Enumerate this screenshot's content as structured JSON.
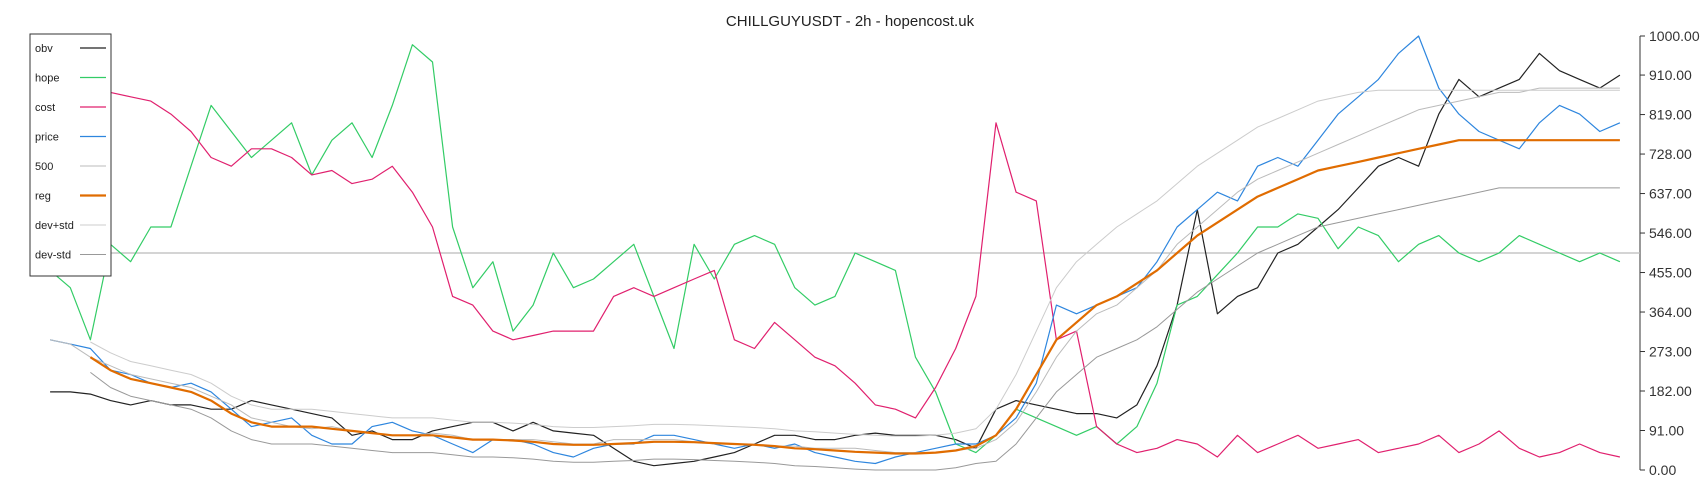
{
  "chart_data": {
    "type": "line",
    "title": "CHILLGUYUSDT - 2h - hopencost.uk",
    "xlabel": "",
    "ylabel": "",
    "ylim": [
      0,
      1000
    ],
    "yticks": [
      "1000.00",
      "910.00",
      "819.00",
      "728.00",
      "637.00",
      "546.00",
      "455.00",
      "364.00",
      "273.00",
      "182.00",
      "91.00",
      "0.00"
    ],
    "ytick_values": [
      1000,
      910,
      819,
      728,
      637,
      546,
      455,
      364,
      273,
      182,
      91,
      0
    ],
    "grid": false,
    "legend_position": "top-left",
    "reference_line": {
      "y": 500,
      "color": "#bbbbbb"
    },
    "x": [
      0,
      5,
      10,
      15,
      20,
      25,
      30,
      35,
      40,
      45,
      50,
      55,
      60,
      65,
      70,
      75,
      80,
      85,
      90,
      95,
      100,
      105,
      110,
      115,
      120,
      125,
      130,
      135,
      140,
      145,
      150,
      155,
      160,
      165,
      170,
      175,
      180,
      185,
      190,
      195,
      200,
      205,
      210,
      215,
      220,
      225,
      230,
      235,
      240,
      245,
      250,
      255,
      260,
      265,
      270,
      275,
      280,
      285,
      290,
      295,
      300,
      305,
      310,
      315,
      320,
      325,
      330,
      335,
      340,
      345,
      350,
      355,
      360,
      365,
      370,
      375,
      380,
      385,
      390,
      395,
      400
    ],
    "series": [
      {
        "name": "obv",
        "color": "#222222",
        "width": 1.2,
        "values": [
          null,
          180,
          180,
          175,
          160,
          150,
          160,
          150,
          150,
          140,
          140,
          160,
          150,
          140,
          130,
          120,
          80,
          90,
          70,
          70,
          90,
          100,
          110,
          110,
          90,
          110,
          90,
          85,
          80,
          50,
          20,
          10,
          15,
          20,
          30,
          40,
          60,
          80,
          80,
          70,
          70,
          80,
          85,
          80,
          80,
          80,
          70,
          50,
          140,
          160,
          150,
          140,
          130,
          130,
          120,
          150,
          240,
          380,
          600,
          360,
          400,
          420,
          500,
          520,
          560,
          600,
          650,
          700,
          720,
          700,
          820,
          900,
          860,
          880,
          900,
          960,
          920,
          900,
          880,
          910,
          null
        ]
      },
      {
        "name": "hope",
        "color": "#33cc66",
        "width": 1.2,
        "values": [
          null,
          460,
          420,
          300,
          520,
          480,
          560,
          560,
          700,
          840,
          780,
          720,
          760,
          800,
          680,
          760,
          800,
          720,
          840,
          980,
          940,
          560,
          420,
          480,
          320,
          380,
          500,
          420,
          440,
          480,
          520,
          400,
          280,
          520,
          440,
          520,
          540,
          520,
          420,
          380,
          400,
          500,
          480,
          460,
          260,
          180,
          60,
          40,
          80,
          140,
          120,
          100,
          80,
          100,
          60,
          100,
          200,
          380,
          400,
          450,
          500,
          560,
          560,
          590,
          580,
          510,
          560,
          540,
          480,
          520,
          540,
          500,
          480,
          500,
          540,
          520,
          500,
          480,
          500,
          480,
          null
        ]
      },
      {
        "name": "cost",
        "color": "#e0206e",
        "width": 1.2,
        "values": [
          null,
          820,
          840,
          870,
          870,
          860,
          850,
          820,
          780,
          720,
          700,
          740,
          740,
          720,
          680,
          690,
          660,
          670,
          700,
          640,
          560,
          400,
          380,
          320,
          300,
          310,
          320,
          320,
          320,
          400,
          420,
          400,
          420,
          440,
          460,
          300,
          280,
          340,
          300,
          260,
          240,
          200,
          150,
          140,
          120,
          190,
          280,
          400,
          800,
          640,
          620,
          300,
          320,
          100,
          60,
          40,
          50,
          70,
          60,
          30,
          80,
          40,
          60,
          80,
          50,
          60,
          70,
          40,
          50,
          60,
          80,
          40,
          60,
          90,
          50,
          30,
          40,
          60,
          40,
          30,
          null
        ]
      },
      {
        "name": "price",
        "color": "#2e86de",
        "width": 1.2,
        "values": [
          null,
          300,
          290,
          280,
          230,
          220,
          200,
          190,
          200,
          180,
          140,
          100,
          110,
          120,
          80,
          60,
          60,
          100,
          110,
          90,
          80,
          60,
          40,
          70,
          70,
          60,
          40,
          30,
          50,
          60,
          60,
          80,
          80,
          70,
          60,
          50,
          60,
          50,
          60,
          40,
          30,
          20,
          15,
          30,
          40,
          50,
          60,
          60,
          80,
          120,
          200,
          380,
          360,
          380,
          400,
          420,
          480,
          560,
          600,
          640,
          620,
          700,
          720,
          700,
          760,
          820,
          860,
          900,
          960,
          1000,
          880,
          820,
          780,
          760,
          740,
          800,
          840,
          820,
          780,
          800,
          null
        ]
      },
      {
        "name": "500",
        "color": "#bbbbbb",
        "width": 1.0,
        "values": [
          null,
          300,
          290,
          260,
          240,
          220,
          210,
          200,
          190,
          170,
          150,
          120,
          110,
          100,
          95,
          100,
          90,
          85,
          80,
          80,
          85,
          80,
          70,
          70,
          70,
          70,
          65,
          60,
          60,
          70,
          70,
          70,
          70,
          65,
          60,
          60,
          60,
          55,
          55,
          50,
          50,
          50,
          45,
          40,
          40,
          40,
          45,
          50,
          70,
          110,
          180,
          260,
          320,
          360,
          380,
          420,
          460,
          520,
          560,
          600,
          640,
          670,
          690,
          710,
          730,
          750,
          770,
          790,
          810,
          830,
          840,
          850,
          860,
          870,
          870,
          880,
          880,
          880,
          880,
          880,
          null
        ]
      },
      {
        "name": "reg",
        "color": "#e06c00",
        "width": 2.2,
        "values": [
          null,
          null,
          null,
          260,
          230,
          210,
          200,
          190,
          180,
          160,
          130,
          110,
          100,
          100,
          100,
          95,
          90,
          85,
          80,
          80,
          80,
          75,
          70,
          70,
          68,
          65,
          60,
          58,
          58,
          60,
          62,
          65,
          65,
          64,
          62,
          60,
          58,
          55,
          50,
          48,
          45,
          42,
          40,
          38,
          38,
          40,
          45,
          55,
          80,
          140,
          220,
          300,
          340,
          380,
          400,
          430,
          460,
          500,
          540,
          570,
          600,
          630,
          650,
          670,
          690,
          700,
          710,
          720,
          730,
          740,
          750,
          760,
          760,
          760,
          760,
          760,
          760,
          760,
          760,
          760,
          null
        ]
      },
      {
        "name": "dev+std",
        "color": "#cccccc",
        "width": 1.0,
        "values": [
          null,
          null,
          null,
          295,
          270,
          250,
          240,
          230,
          220,
          200,
          170,
          150,
          140,
          140,
          140,
          135,
          130,
          125,
          120,
          120,
          120,
          115,
          110,
          110,
          108,
          105,
          100,
          98,
          98,
          100,
          102,
          105,
          105,
          104,
          102,
          100,
          98,
          95,
          90,
          88,
          85,
          82,
          80,
          78,
          78,
          80,
          85,
          95,
          140,
          220,
          320,
          420,
          480,
          520,
          560,
          590,
          620,
          660,
          700,
          730,
          760,
          790,
          810,
          830,
          850,
          860,
          870,
          875,
          875,
          875,
          875,
          875,
          875,
          875,
          875,
          875,
          875,
          875,
          875,
          875,
          null
        ]
      },
      {
        "name": "dev-std",
        "color": "#999999",
        "width": 1.0,
        "values": [
          null,
          null,
          null,
          225,
          190,
          170,
          160,
          150,
          140,
          120,
          90,
          70,
          60,
          60,
          60,
          55,
          50,
          45,
          40,
          40,
          40,
          35,
          30,
          30,
          28,
          25,
          20,
          18,
          18,
          20,
          22,
          25,
          25,
          24,
          22,
          20,
          18,
          15,
          10,
          8,
          5,
          2,
          0,
          0,
          0,
          0,
          5,
          15,
          20,
          60,
          120,
          180,
          220,
          260,
          280,
          300,
          330,
          370,
          410,
          440,
          470,
          500,
          520,
          540,
          560,
          570,
          580,
          590,
          600,
          610,
          620,
          630,
          640,
          650,
          650,
          650,
          650,
          650,
          650,
          650,
          null
        ]
      }
    ]
  }
}
